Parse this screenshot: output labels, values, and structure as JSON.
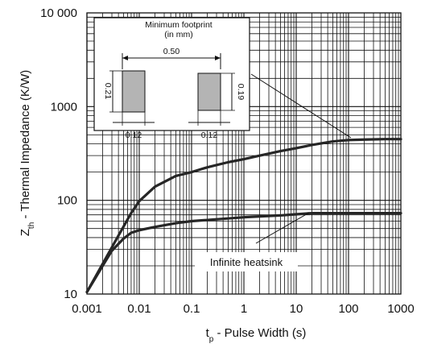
{
  "chart_data": {
    "type": "line",
    "xscale": "log",
    "yscale": "log",
    "xlim": [
      0.001,
      1000
    ],
    "ylim": [
      10,
      10000
    ],
    "grid": true,
    "x_tick_labels": [
      "0.001",
      "0.01",
      "0.1",
      "1",
      "10",
      "100",
      "1000"
    ],
    "y_tick_labels": [
      "10",
      "100",
      "1000",
      "10 000"
    ],
    "y_tick_values": [
      10,
      100,
      1000,
      10000
    ],
    "ylabel_main": "Z",
    "ylabel_sub": "th",
    "ylabel_rest": " - Thermal Impedance (K/W)",
    "xlabel_main": "t",
    "xlabel_sub": "p",
    "xlabel_rest": " - Pulse Width (s)",
    "series": [
      {
        "x": [
          0.001,
          0.002,
          0.004,
          0.007,
          0.01,
          0.02,
          0.05,
          0.1,
          0.2,
          0.5,
          1,
          2,
          5,
          10,
          20,
          50,
          100,
          200,
          500,
          1000
        ],
        "y": [
          10.5,
          21,
          42,
          73,
          98,
          140,
          182,
          200,
          225,
          255,
          275,
          300,
          335,
          360,
          390,
          425,
          440,
          445,
          450,
          450
        ],
        "annotation": "minimum-footprint"
      },
      {
        "x": [
          0.001,
          0.002,
          0.003,
          0.005,
          0.007,
          0.01,
          0.02,
          0.05,
          0.1,
          0.5,
          1,
          5,
          10,
          20,
          50,
          100,
          500,
          1000
        ],
        "y": [
          10.5,
          20,
          29,
          39,
          45,
          48,
          52,
          57,
          60,
          64,
          66,
          69,
          71,
          73,
          73,
          73,
          73,
          73
        ],
        "name": "Infinite heatsink"
      }
    ],
    "annotations": {
      "infinite_heatsink_label": "Infinite heatsink"
    },
    "inset": {
      "title_line1": "Minimum footprint",
      "title_line2": "(in mm)",
      "spacing": "0.50",
      "left_pad_height": "0.21",
      "right_pad_height": "0.19",
      "left_pad_width": "0.12",
      "right_pad_width": "0.12",
      "pad_color": "#b4b4b4"
    },
    "colors": {
      "line": "#262626",
      "grid": "#111111",
      "background": "#ffffff"
    }
  }
}
